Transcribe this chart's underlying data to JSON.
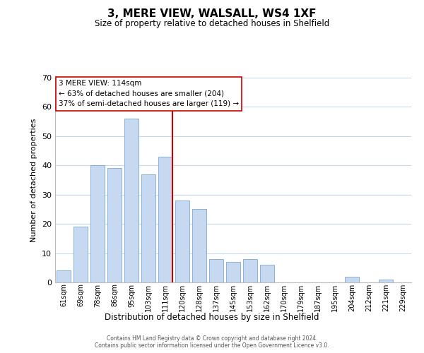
{
  "title": "3, MERE VIEW, WALSALL, WS4 1XF",
  "subtitle": "Size of property relative to detached houses in Shelfield",
  "xlabel": "Distribution of detached houses by size in Shelfield",
  "ylabel": "Number of detached properties",
  "bar_labels": [
    "61sqm",
    "69sqm",
    "78sqm",
    "86sqm",
    "95sqm",
    "103sqm",
    "111sqm",
    "120sqm",
    "128sqm",
    "137sqm",
    "145sqm",
    "153sqm",
    "162sqm",
    "170sqm",
    "179sqm",
    "187sqm",
    "195sqm",
    "204sqm",
    "212sqm",
    "221sqm",
    "229sqm"
  ],
  "bar_values": [
    4,
    19,
    40,
    39,
    56,
    37,
    43,
    28,
    25,
    8,
    7,
    8,
    6,
    0,
    0,
    0,
    0,
    2,
    0,
    1,
    0
  ],
  "bar_color": "#c6d9f0",
  "bar_edge_color": "#7ba7d4",
  "highlight_index": 6,
  "vline_color": "#cc0000",
  "ylim": [
    0,
    70
  ],
  "yticks": [
    0,
    10,
    20,
    30,
    40,
    50,
    60,
    70
  ],
  "annotation_text_line1": "3 MERE VIEW: 114sqm",
  "annotation_text_line2": "← 63% of detached houses are smaller (204)",
  "annotation_text_line3": "37% of semi-detached houses are larger (119) →",
  "annotation_box_color": "#ffffff",
  "annotation_box_edge": "#cc0000",
  "footer_line1": "Contains HM Land Registry data © Crown copyright and database right 2024.",
  "footer_line2": "Contains public sector information licensed under the Open Government Licence v3.0.",
  "background_color": "#ffffff",
  "grid_color": "#c8d8e8"
}
